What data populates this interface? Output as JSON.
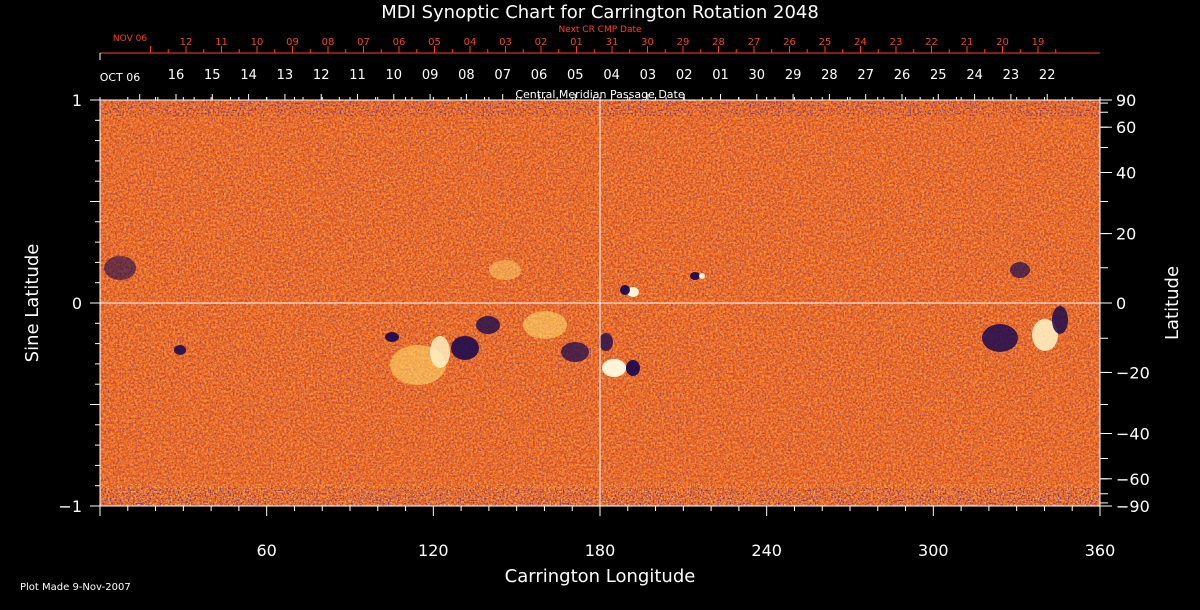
{
  "chart_data": {
    "type": "heatmap",
    "title": "MDI Synoptic Chart for Carrington Rotation 2048",
    "xlabel": "Carrington Longitude",
    "ylabel_left": "Sine Latitude",
    "ylabel_right": "Latitude",
    "xlim": [
      0,
      360
    ],
    "ylim": [
      -1,
      1
    ],
    "x_ticks": [
      60,
      120,
      180,
      240,
      300,
      360
    ],
    "y_ticks_left": [
      1,
      0,
      -1
    ],
    "y_ticks_left_labels": [
      "1",
      "0",
      "−1"
    ],
    "y_ticks_right": [
      90,
      60,
      40,
      20,
      0,
      -20,
      -40,
      -60,
      -90
    ],
    "y_ticks_right_labels": [
      "90",
      "60",
      "40",
      "20",
      "0",
      "−20",
      "−40",
      "−60",
      "−90"
    ],
    "crosshair": {
      "longitude": 180,
      "sine_latitude": 0
    },
    "top_axis": {
      "next_cr_label": "Next CR CMP Date",
      "next_month_label": "NOV 06",
      "next_dates": [
        "12",
        "11",
        "10",
        "09",
        "08",
        "07",
        "06",
        "05",
        "04",
        "03",
        "02",
        "01",
        "31",
        "30",
        "29",
        "28",
        "27",
        "26",
        "25",
        "24",
        "23",
        "22",
        "21",
        "20",
        "19"
      ],
      "month_label": "OCT 06",
      "dates": [
        "16",
        "15",
        "14",
        "13",
        "12",
        "11",
        "10",
        "09",
        "08",
        "07",
        "06",
        "05",
        "04",
        "03",
        "02",
        "01",
        "30",
        "29",
        "28",
        "27",
        "26",
        "25",
        "24",
        "23",
        "22"
      ],
      "cmp_label": "Central Meridian Passage Date"
    },
    "colors": {
      "background": "#000000",
      "field_base": "#e85010",
      "positive_field": "#fff0a0",
      "negative_field": "#200a55",
      "next_cr_axis": "#ff4020",
      "axes": "#ffffff"
    }
  },
  "footer": {
    "plot_made": "Plot Made  9-Nov-2007"
  }
}
